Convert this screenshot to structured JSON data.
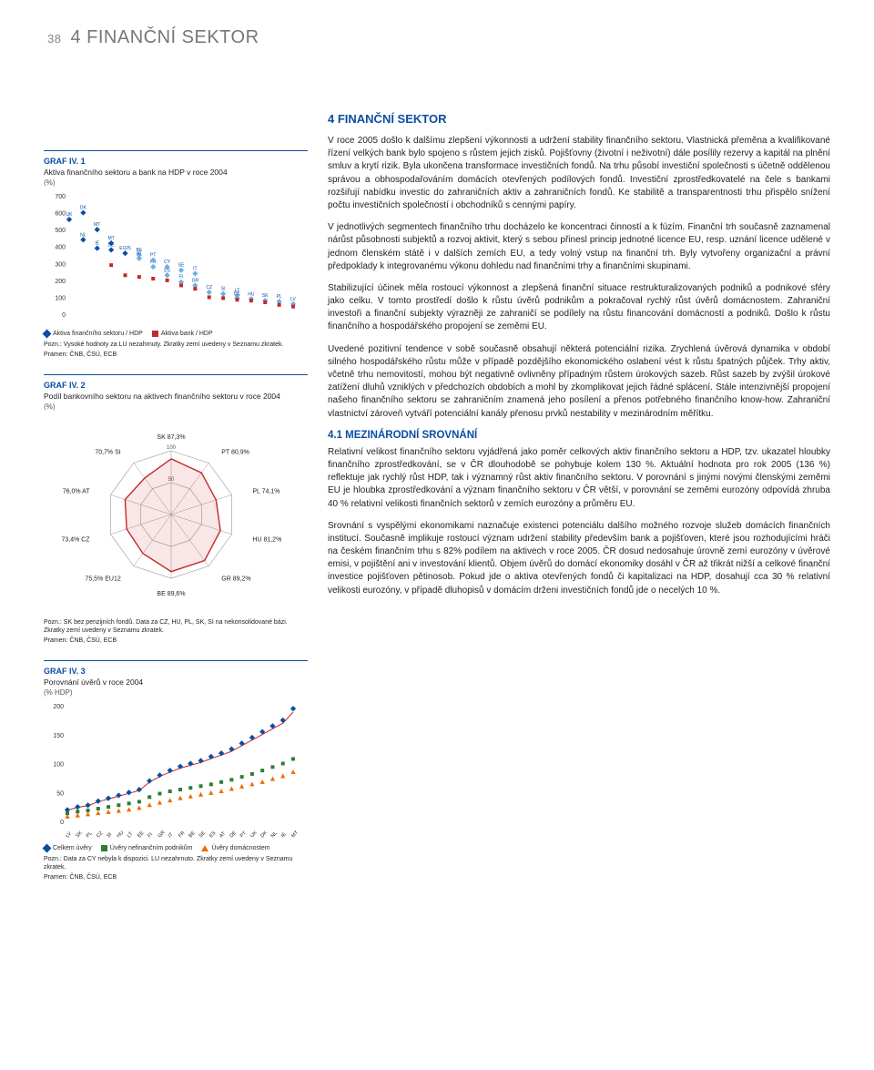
{
  "page_number": "38",
  "page_title": "4 FINANČNÍ SEKTOR",
  "section_header": "4 FINANČNÍ SEKTOR",
  "para1": "V roce 2005 došlo k dalšímu zlepšení výkonnosti a udržení stability finančního sektoru. Vlastnická přeměna a kvalifikované řízení velkých bank bylo spojeno s růstem jejich zisků. Pojišťovny (životní i neživotní) dále posílily rezervy a kapitál na plnění smluv a krytí rizik. Byla ukončena transformace investičních fondů. Na trhu působí investiční společnosti s účetně oddělenou správou a obhospodařováním domácích otevřených podílových fondů. Investiční zprostředkovatelé na čele s bankami rozšiřují nabídku investic do zahraničních aktiv a zahraničních fondů. Ke stabilitě a transparentnosti trhu přispělo snížení počtu investičních společností i obchodníků s cennými papíry.",
  "para2": "V jednotlivých segmentech finančního trhu docházelo ke koncentraci činností a k fúzím. Finanční trh současně zaznamenal nárůst působnosti subjektů a rozvoj aktivit, který s sebou přinesl princip jednotné licence EU, resp. uznání licence udělené v jednom členském státě i v dalších zemích EU, a tedy volný vstup na finanční trh. Byly vytvořeny organizační a právní předpoklady k integrovanému výkonu dohledu nad finančními trhy a finančními skupinami.",
  "para3": "Stabilizující účinek měla rostoucí výkonnost a zlepšená finanční situace restrukturalizovaných podniků a podnikové sféry jako celku. V tomto prostředí došlo k růstu úvěrů podnikům a pokračoval rychlý růst úvěrů domácnostem. Zahraniční investoři a finanční subjekty výrazněji ze zahraničí se podílely na růstu financování domácností a podniků. Došlo k růstu finančního a hospodářského propojení se zeměmi EU.",
  "para4": "Uvedené pozitivní tendence v sobě současně obsahují některá potenciální rizika. Zrychlená úvěrová dynamika v období silného hospodářského růstu může v případě pozdějšího ekonomického oslabení vést k růstu špatných půjček. Trhy aktiv, včetně trhu nemovitostí, mohou být negativně ovlivněny případným růstem úrokových sazeb. Růst sazeb by zvýšil úrokové zatížení dluhů vzniklých v předchozích obdobích a mohl by zkomplikovat jejich řádné splácení. Stále intenzivnější propojení našeho finančního sektoru se zahraničním znamená jeho posílení a přenos potřebného finančního know-how. Zahraniční vlastnictví zároveň vytváří potenciální kanály přenosu prvků nestability v mezinárodním měřítku.",
  "subhead": "4.1 MEZINÁRODNÍ SROVNÁNÍ",
  "para5": "Relativní velikost finančního sektoru vyjádřená jako poměr celkových aktiv finančního sektoru a HDP, tzv. ukazatel hloubky finančního zprostředkování, se v ČR dlouhodobě se pohybuje kolem 130 %. Aktuální hodnota pro rok 2005 (136 %) reflektuje jak rychlý růst HDP, tak i významný růst aktiv finančního sektoru. V porovnání s jinými novými členskými zeměmi EU je hloubka zprostředkování a význam finančního sektoru v ČR větší, v porovnání se zeměmi eurozóny odpovídá zhruba 40 % relativní velikosti finančních sektorů v zemích eurozóny a průměru EU.",
  "para6": "Srovnání s vyspělými ekonomikami naznačuje existenci potenciálu dalšího možného rozvoje služeb domácích finančních institucí. Současně implikuje rostoucí význam udržení stability především bank a pojišťoven, které jsou rozhodujícími hráči na českém finančním trhu s 82% podílem na aktivech v roce 2005. ČR dosud nedosahuje úrovně zemí eurozóny v úvěrové emisi, v pojištění ani v investování klientů. Objem úvěrů do domácí ekonomiky dosáhl v ČR až třikrát nižší a celkové finanční investice pojišťoven pětinosob. Pokud jde o aktiva otevřených fondů či kapitalizaci na HDP, dosahují cca 30 % relativní velikosti eurozóny, v případě dluhopisů v domácím drženi investičních fondů jde o necelých 10 %.",
  "graf1": {
    "title": "GRAF IV. 1",
    "subtitle": "Aktiva finančního sektoru a bank na HDP v roce 2004",
    "unit": "(%)",
    "ylim": [
      0,
      700
    ],
    "ytick_step": 100,
    "color_series1": "#0a4ea2",
    "color_series1_alt": "#6bb0e5",
    "color_series2": "#c62828",
    "legend1": "Aktiva finančního sektoru / HDP",
    "legend2": "Aktiva bank / HDP",
    "note": "Pozn.: Vysoké hodnoty za LU nezahrnuty. Zkratky zemí uvedeny v Seznamu zkratek.",
    "source": "Pramen: ČNB, ČSÚ, ECB",
    "points_a": [
      {
        "x": 0,
        "y": 560,
        "lbl": "UK"
      },
      {
        "x": 1,
        "y": 600,
        "lbl": "DK"
      },
      {
        "x": 1,
        "y": 440,
        "lbl": "NL"
      },
      {
        "x": 2,
        "y": 500,
        "lbl": "MT"
      },
      {
        "x": 2,
        "y": 390,
        "lbl": "IE"
      },
      {
        "x": 3,
        "y": 380,
        "lbl": "DE"
      },
      {
        "x": 3,
        "y": 420,
        "lbl": "MT"
      },
      {
        "x": 4,
        "y": 360,
        "lbl": "EU25"
      },
      {
        "x": 5,
        "y": 350,
        "lbl": "BE"
      },
      {
        "x": 5,
        "y": 330,
        "lbl": "AT"
      },
      {
        "x": 6,
        "y": 280,
        "lbl": "FR"
      },
      {
        "x": 6,
        "y": 320,
        "lbl": "PT"
      },
      {
        "x": 7,
        "y": 280,
        "lbl": "CY"
      },
      {
        "x": 7,
        "y": 230,
        "lbl": "ES"
      },
      {
        "x": 8,
        "y": 260,
        "lbl": "SE"
      },
      {
        "x": 8,
        "y": 190,
        "lbl": "FI"
      },
      {
        "x": 9,
        "y": 240,
        "lbl": "IT"
      },
      {
        "x": 9,
        "y": 170,
        "lbl": "GR"
      },
      {
        "x": 10,
        "y": 130,
        "lbl": "CZ"
      },
      {
        "x": 11,
        "y": 120,
        "lbl": "SI"
      },
      {
        "x": 12,
        "y": 110,
        "lbl": "LT"
      },
      {
        "x": 12,
        "y": 95,
        "lbl": "EE"
      },
      {
        "x": 13,
        "y": 90,
        "lbl": "HU"
      },
      {
        "x": 14,
        "y": 80,
        "lbl": "SK"
      },
      {
        "x": 15,
        "y": 75,
        "lbl": "PL"
      },
      {
        "x": 16,
        "y": 60,
        "lbl": "LV"
      }
    ],
    "points_b": [
      {
        "x": 3,
        "y": 290
      },
      {
        "x": 4,
        "y": 230
      },
      {
        "x": 5,
        "y": 220
      },
      {
        "x": 6,
        "y": 210
      },
      {
        "x": 7,
        "y": 200
      },
      {
        "x": 8,
        "y": 170
      },
      {
        "x": 9,
        "y": 150
      },
      {
        "x": 10,
        "y": 100
      },
      {
        "x": 11,
        "y": 95
      },
      {
        "x": 12,
        "y": 85
      },
      {
        "x": 13,
        "y": 80
      },
      {
        "x": 14,
        "y": 70
      },
      {
        "x": 15,
        "y": 55
      },
      {
        "x": 16,
        "y": 45
      }
    ]
  },
  "graf2": {
    "title": "GRAF IV. 2",
    "subtitle": "Podíl bankovního sektoru na aktivech finančního sektoru v roce 2004",
    "unit": "(%)",
    "axes_labels": [
      "SK 87,3%",
      "PT 80,9%",
      "PL 74,1%",
      "HU 81,2%",
      "GR 89,2%",
      "BE 89,6%",
      "75,5% EU12",
      "73,4% CZ",
      "76,0% AT",
      "70,7% SI"
    ],
    "ring_labels": [
      "50",
      "100"
    ],
    "values": [
      87.3,
      80.9,
      74.1,
      81.2,
      89.2,
      89.6,
      75.5,
      73.4,
      76.0,
      70.7
    ],
    "stroke_web": "#999999",
    "fill_poly": "rgba(200,60,50,0.12)",
    "stroke_poly": "#c62828",
    "note": "Pozn.: SK bez penzijních fondů. Data za CZ, HU, PL, SK, SI na nekonsolidované bázi. Zkratky zemí uvedeny v Seznamu zkratek.",
    "source": "Pramen: ČNB, ČSÚ, ECB"
  },
  "graf3": {
    "title": "GRAF IV. 3",
    "subtitle": "Porovnání úvěrů v roce 2004",
    "unit": "(% HDP)",
    "ylim": [
      0,
      200
    ],
    "ytick_step": 50,
    "xlabels": [
      "LV",
      "SK",
      "PL",
      "CZ",
      "SI",
      "HU",
      "LT",
      "EE",
      "FI",
      "GR",
      "IT",
      "FR",
      "BE",
      "SE",
      "ES",
      "AT",
      "DE",
      "PT",
      "UK",
      "DK",
      "NL",
      "IE",
      "MT"
    ],
    "series": {
      "total": [
        20,
        25,
        28,
        35,
        40,
        45,
        50,
        55,
        70,
        80,
        88,
        95,
        100,
        105,
        112,
        118,
        125,
        135,
        145,
        155,
        165,
        175,
        195
      ],
      "corp": [
        14,
        17,
        19,
        22,
        25,
        28,
        31,
        34,
        42,
        48,
        52,
        55,
        58,
        61,
        64,
        68,
        72,
        77,
        82,
        88,
        94,
        100,
        108
      ],
      "house": [
        8,
        10,
        12,
        14,
        16,
        18,
        20,
        23,
        28,
        32,
        36,
        40,
        43,
        46,
        49,
        52,
        56,
        60,
        64,
        68,
        73,
        78,
        85
      ]
    },
    "colors": {
      "total": "#0a4ea2",
      "corp": "#2e7d32",
      "house": "#ef6c00",
      "trend": "#c62828"
    },
    "legend1": "Celkem úvěry",
    "legend2": "Úvěry nefinančním podnikům",
    "legend3": "Úvěry domácnostem",
    "note": "Pozn.: Data za CY nebyla k dispozici. LU nezahrnuto. Zkratky zemí uvedeny v Seznamu zkratek.",
    "source": "Pramen: ČNB, ČSÚ, ECB"
  }
}
